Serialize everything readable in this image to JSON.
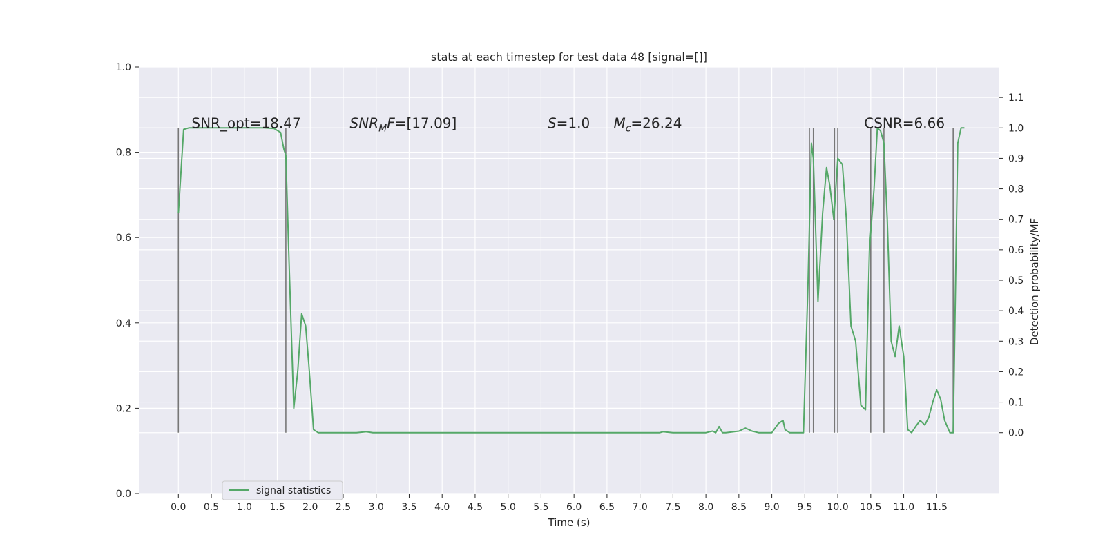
{
  "chart_data": {
    "type": "line",
    "title": "stats at each timestep for test data 48 [signal=[]]",
    "xlabel": "Time (s)",
    "ylabel_left": "",
    "ylabel_right": "Detection probability/MF",
    "xlim": [
      -0.6,
      12.45
    ],
    "ylim_left": [
      0.0,
      1.0
    ],
    "ylim_right": [
      -0.2,
      1.2
    ],
    "x_ticks": [
      "0.0",
      "0.5",
      "1.0",
      "1.5",
      "2.0",
      "2.5",
      "3.0",
      "3.5",
      "4.0",
      "4.5",
      "5.0",
      "5.5",
      "6.0",
      "6.5",
      "7.0",
      "7.5",
      "8.0",
      "8.5",
      "9.0",
      "9.5",
      "10.0",
      "10.5",
      "11.0",
      "11.5"
    ],
    "y_ticks_left": [
      "0.0",
      "0.2",
      "0.4",
      "0.6",
      "0.8",
      "1.0"
    ],
    "y_ticks_right": [
      "0.0",
      "0.1",
      "0.2",
      "0.3",
      "0.4",
      "0.5",
      "0.6",
      "0.7",
      "0.8",
      "0.9",
      "1.0",
      "1.1"
    ],
    "grid": true,
    "legend_position": "lower-left",
    "annotations": [
      {
        "id": "snr-opt",
        "text": "SNR_opt=18.47",
        "x": 0.2,
        "y": 1.0
      },
      {
        "id": "snr-mf",
        "text": "SNR_MF=[17.09]",
        "x": 2.6,
        "y": 1.0
      },
      {
        "id": "s",
        "text": "S=1.0",
        "x": 5.6,
        "y": 1.0
      },
      {
        "id": "mc",
        "text": "M_c=26.24",
        "x": 6.6,
        "y": 1.0
      },
      {
        "id": "csnr",
        "text": "CSNR=6.66",
        "x": 10.4,
        "y": 1.0
      }
    ],
    "vlines": {
      "color": "#777777",
      "ymin": 0.0,
      "ymax": 1.0,
      "x": [
        0.0,
        1.63,
        9.57,
        9.63,
        9.95,
        10.0,
        10.5,
        10.7,
        11.75
      ]
    },
    "series": [
      {
        "name": "signal statistics",
        "color": "#55a868",
        "x": [
          0.0,
          0.08,
          0.16,
          0.3,
          0.5,
          0.7,
          0.9,
          1.1,
          1.3,
          1.45,
          1.55,
          1.6,
          1.63,
          1.68,
          1.75,
          1.81,
          1.87,
          1.93,
          1.98,
          2.05,
          2.12,
          2.3,
          2.5,
          2.7,
          2.85,
          2.95,
          3.2,
          3.5,
          4.0,
          4.5,
          5.0,
          5.5,
          6.0,
          6.5,
          7.0,
          7.3,
          7.35,
          7.5,
          8.0,
          8.1,
          8.15,
          8.2,
          8.25,
          8.3,
          8.5,
          8.6,
          8.7,
          8.8,
          9.0,
          9.1,
          9.17,
          9.2,
          9.27,
          9.35,
          9.48,
          9.55,
          9.6,
          9.63,
          9.7,
          9.77,
          9.83,
          9.88,
          9.94,
          10.0,
          10.07,
          10.13,
          10.2,
          10.27,
          10.35,
          10.42,
          10.48,
          10.55,
          10.6,
          10.65,
          10.7,
          10.75,
          10.81,
          10.87,
          10.93,
          11.0,
          11.06,
          11.12,
          11.18,
          11.25,
          11.32,
          11.38,
          11.44,
          11.5,
          11.56,
          11.62,
          11.7,
          11.75,
          11.82,
          11.87,
          11.92
        ],
        "y": [
          0.72,
          0.995,
          1.0,
          1.0,
          1.0,
          1.0,
          1.0,
          1.0,
          1.0,
          0.998,
          0.985,
          0.93,
          0.91,
          0.55,
          0.08,
          0.2,
          0.39,
          0.35,
          0.22,
          0.01,
          0.0,
          0.0,
          0.0,
          0.0,
          0.003,
          0.0,
          0.0,
          0.0,
          0.0,
          0.0,
          0.0,
          0.0,
          0.0,
          0.0,
          0.0,
          0.0,
          0.003,
          0.0,
          0.0,
          0.005,
          0.0,
          0.02,
          0.0,
          0.0,
          0.005,
          0.015,
          0.005,
          0.0,
          0.0,
          0.03,
          0.04,
          0.01,
          0.0,
          0.0,
          0.0,
          0.5,
          0.95,
          0.9,
          0.43,
          0.72,
          0.87,
          0.81,
          0.7,
          0.9,
          0.88,
          0.7,
          0.35,
          0.3,
          0.09,
          0.075,
          0.6,
          0.8,
          1.0,
          0.99,
          0.95,
          0.7,
          0.3,
          0.25,
          0.35,
          0.25,
          0.01,
          0.0,
          0.02,
          0.04,
          0.025,
          0.05,
          0.1,
          0.14,
          0.11,
          0.04,
          0.0,
          0.0,
          0.95,
          1.0,
          1.0
        ]
      }
    ]
  }
}
